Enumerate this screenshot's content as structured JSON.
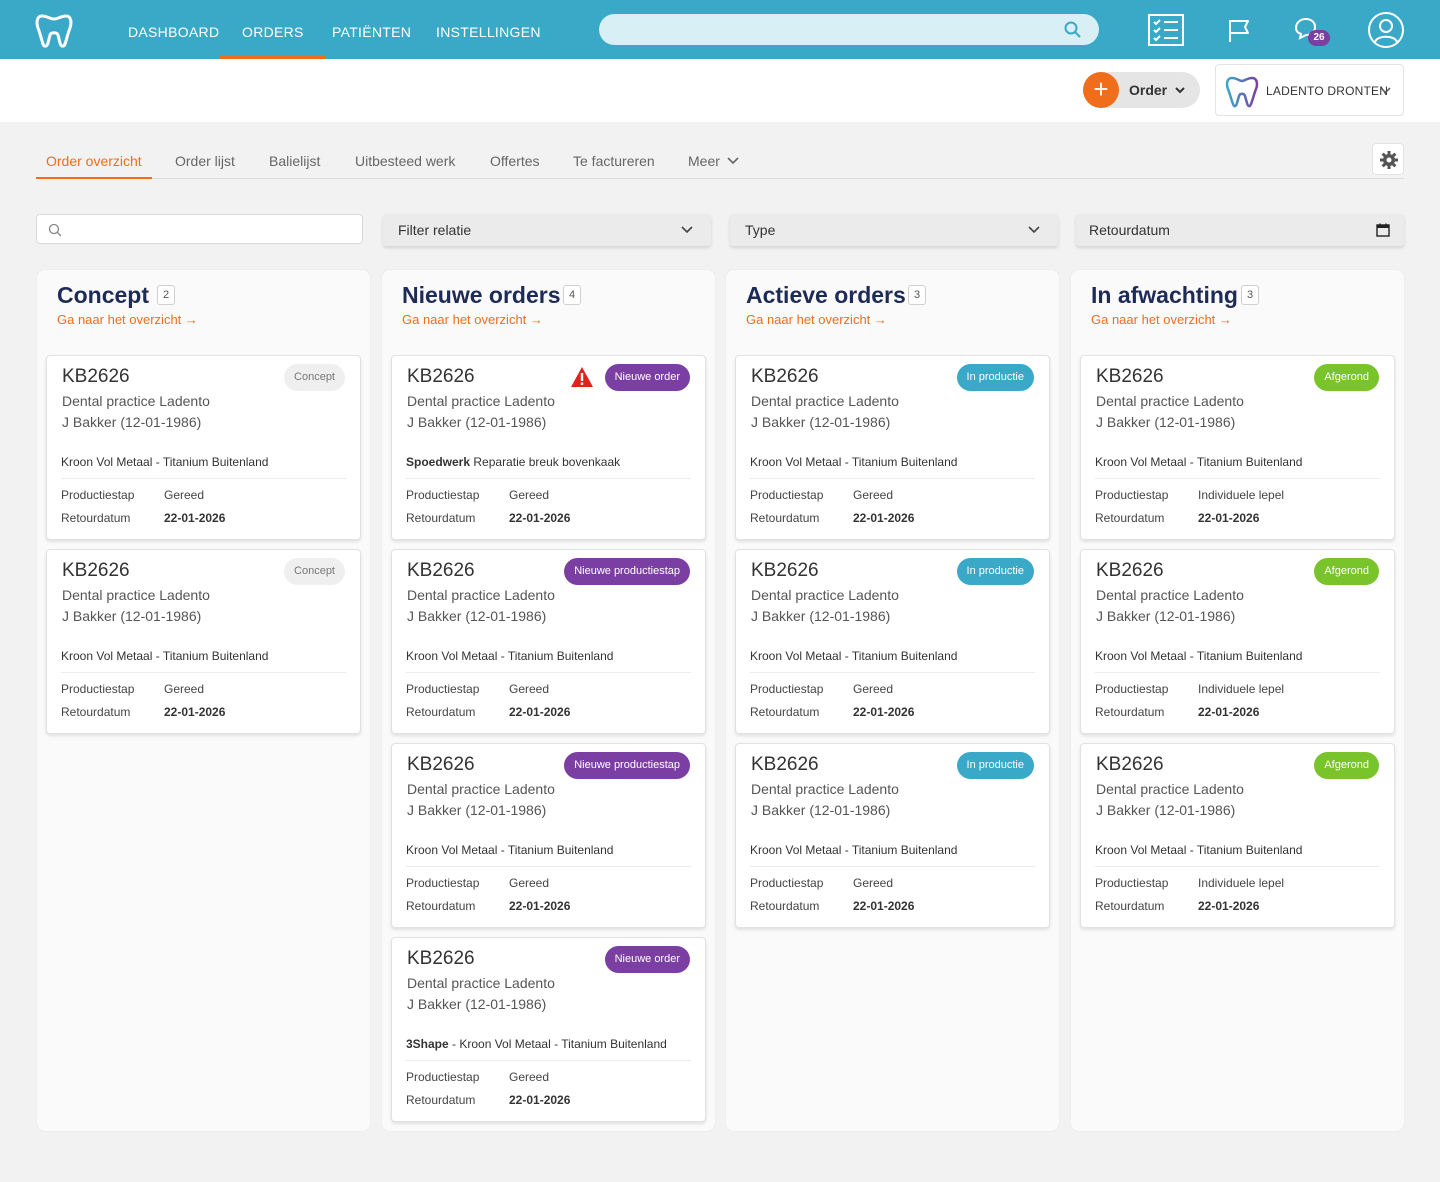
{
  "nav": {
    "items": [
      "DASHBOARD",
      "ORDERS",
      "PATIËNTEN",
      "INSTELLINGEN"
    ],
    "active": "ORDERS",
    "messages_badge": "26"
  },
  "header": {
    "order_button": "Order",
    "practice": "LADENTO DRONTEN"
  },
  "tabs": [
    "Order overzicht",
    "Order lijst",
    "Balielijst",
    "Uitbesteed werk",
    "Offertes",
    "Te factureren",
    "Meer"
  ],
  "filters": {
    "relation": "Filter relatie",
    "type": "Type",
    "return_date": "Retourdatum"
  },
  "columns": [
    {
      "title": "Concept",
      "count": "2",
      "link": "Ga naar het overzicht →",
      "cards": [
        {
          "id": "KB2626",
          "status": "Concept",
          "practice": "Dental practice Ladento",
          "patient": "J Bakker (12-01-1986)",
          "prefix": "",
          "product": "Kroon Vol Metaal - Titanium Buitenland",
          "step_label": "Productiestap",
          "step": "Gereed",
          "date_label": "Retourdatum",
          "date": "22-01-2026"
        },
        {
          "id": "KB2626",
          "status": "Concept",
          "practice": "Dental practice Ladento",
          "patient": "J Bakker (12-01-1986)",
          "prefix": "",
          "product": "Kroon Vol Metaal - Titanium Buitenland",
          "step_label": "Productiestap",
          "step": "Gereed",
          "date_label": "Retourdatum",
          "date": "22-01-2026"
        }
      ]
    },
    {
      "title": "Nieuwe orders",
      "count": "4",
      "link": "Ga naar het overzicht →",
      "cards": [
        {
          "id": "KB2626",
          "status": "Nieuwe order",
          "warning": true,
          "practice": "Dental practice Ladento",
          "patient": "J Bakker (12-01-1986)",
          "prefix": "Spoedwerk",
          "product": "Reparatie breuk bovenkaak",
          "step_label": "Productiestap",
          "step": "Gereed",
          "date_label": "Retourdatum",
          "date": "22-01-2026"
        },
        {
          "id": "KB2626",
          "status": "Nieuwe productiestap",
          "practice": "Dental practice Ladento",
          "patient": "J Bakker (12-01-1986)",
          "prefix": "",
          "product": "Kroon Vol Metaal - Titanium Buitenland",
          "step_label": "Productiestap",
          "step": "Gereed",
          "date_label": "Retourdatum",
          "date": "22-01-2026"
        },
        {
          "id": "KB2626",
          "status": "Nieuwe productiestap",
          "practice": "Dental practice Ladento",
          "patient": "J Bakker (12-01-1986)",
          "prefix": "",
          "product": "Kroon Vol Metaal - Titanium Buitenland",
          "step_label": "Productiestap",
          "step": "Gereed",
          "date_label": "Retourdatum",
          "date": "22-01-2026"
        },
        {
          "id": "KB2626",
          "status": "Nieuwe order",
          "practice": "Dental practice Ladento",
          "patient": "J Bakker (12-01-1986)",
          "prefix": "3Shape",
          "product": "- Kroon Vol Metaal - Titanium Buitenland",
          "step_label": "Productiestap",
          "step": "Gereed",
          "date_label": "Retourdatum",
          "date": "22-01-2026"
        }
      ]
    },
    {
      "title": "Actieve orders",
      "count": "3",
      "link": "Ga naar het overzicht →",
      "cards": [
        {
          "id": "KB2626",
          "status": "In productie",
          "practice": "Dental practice Ladento",
          "patient": "J Bakker (12-01-1986)",
          "prefix": "",
          "product": "Kroon Vol Metaal - Titanium Buitenland",
          "step_label": "Productiestap",
          "step": "Gereed",
          "date_label": "Retourdatum",
          "date": "22-01-2026"
        },
        {
          "id": "KB2626",
          "status": "In productie",
          "practice": "Dental practice Ladento",
          "patient": "J Bakker (12-01-1986)",
          "prefix": "",
          "product": "Kroon Vol Metaal - Titanium Buitenland",
          "step_label": "Productiestap",
          "step": "Gereed",
          "date_label": "Retourdatum",
          "date": "22-01-2026"
        },
        {
          "id": "KB2626",
          "status": "In productie",
          "practice": "Dental practice Ladento",
          "patient": "J Bakker (12-01-1986)",
          "prefix": "",
          "product": "Kroon Vol Metaal - Titanium Buitenland",
          "step_label": "Productiestap",
          "step": "Gereed",
          "date_label": "Retourdatum",
          "date": "22-01-2026"
        }
      ]
    },
    {
      "title": "In afwachting",
      "count": "3",
      "link": "Ga naar het overzicht →",
      "cards": [
        {
          "id": "KB2626",
          "status": "Afgerond",
          "practice": "Dental practice Ladento",
          "patient": "J Bakker (12-01-1986)",
          "prefix": "",
          "product": "Kroon Vol Metaal - Titanium Buitenland",
          "step_label": "Productiestap",
          "step": "Individuele lepel",
          "date_label": "Retourdatum",
          "date": "22-01-2026"
        },
        {
          "id": "KB2626",
          "status": "Afgerond",
          "practice": "Dental practice Ladento",
          "patient": "J Bakker (12-01-1986)",
          "prefix": "",
          "product": "Kroon Vol Metaal - Titanium Buitenland",
          "step_label": "Productiestap",
          "step": "Individuele lepel",
          "date_label": "Retourdatum",
          "date": "22-01-2026"
        },
        {
          "id": "KB2626",
          "status": "Afgerond",
          "practice": "Dental practice Ladento",
          "patient": "J Bakker (12-01-1986)",
          "prefix": "",
          "product": "Kroon Vol Metaal - Titanium Buitenland",
          "step_label": "Productiestap",
          "step": "Individuele lepel",
          "date_label": "Retourdatum",
          "date": "22-01-2026"
        }
      ]
    }
  ],
  "icons": {
    "logo": "tooth-logo-icon",
    "search": "search-icon",
    "checklist": "checklist-icon",
    "flag": "flag-icon",
    "messages": "chat-bubbles-icon",
    "user": "user-icon",
    "settings": "gear-icon",
    "calendar": "calendar-icon",
    "warning": "warning-icon"
  },
  "colors": {
    "primary": "#3aa9c8",
    "accent": "#f06d1b",
    "title": "#1e2b57",
    "status_new": "#7b3fa3",
    "status_production": "#3aa9c8",
    "status_done": "#79c32b",
    "status_concept": "#efefef"
  }
}
